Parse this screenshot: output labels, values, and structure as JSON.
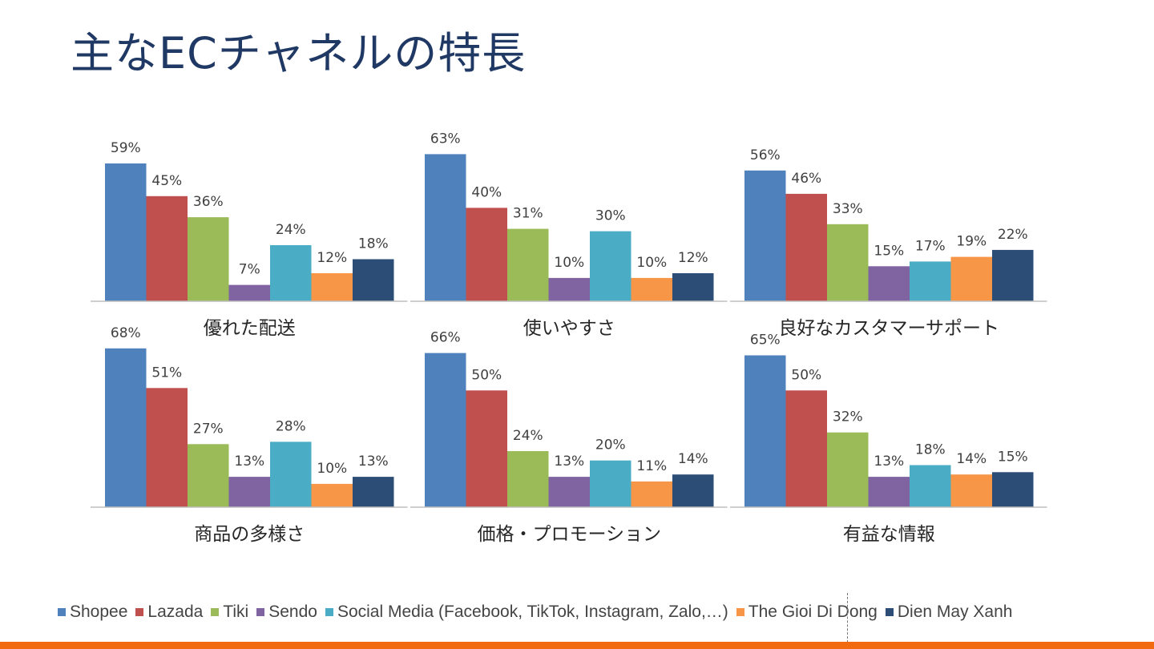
{
  "title": "主なECチャネルの特長",
  "colors": {
    "title": "#1f3864",
    "accent_bar": "#f26a10"
  },
  "chart_data": {
    "type": "bar",
    "series": [
      {
        "name": "Shopee",
        "color": "#4f81bd"
      },
      {
        "name": "Lazada",
        "color": "#c0504d"
      },
      {
        "name": "Tiki",
        "color": "#9bbb59"
      },
      {
        "name": "Sendo",
        "color": "#8064a2"
      },
      {
        "name": "Social Media (Facebook, TikTok, Instagram, Zalo,…)",
        "color": "#4bacc6"
      },
      {
        "name": "The Gioi Di Dong",
        "color": "#f79646"
      },
      {
        "name": "Dien May Xanh",
        "color": "#2c4d75"
      }
    ],
    "value_format": "percent",
    "grid": false,
    "legend_position": "bottom",
    "groups": [
      {
        "category": "優れた配送",
        "values": [
          59,
          45,
          36,
          7,
          24,
          12,
          18
        ]
      },
      {
        "category": "使いやすさ",
        "values": [
          63,
          40,
          31,
          10,
          30,
          10,
          12
        ]
      },
      {
        "category": "良好なカスタマーサポート",
        "values": [
          56,
          46,
          33,
          15,
          17,
          19,
          22
        ]
      },
      {
        "category": "商品の多様さ",
        "values": [
          68,
          51,
          27,
          13,
          28,
          10,
          13
        ]
      },
      {
        "category": "価格・プロモーション",
        "values": [
          66,
          50,
          24,
          13,
          20,
          11,
          14
        ]
      },
      {
        "category": "有益な情報",
        "values": [
          65,
          50,
          32,
          13,
          18,
          14,
          15
        ]
      }
    ]
  }
}
